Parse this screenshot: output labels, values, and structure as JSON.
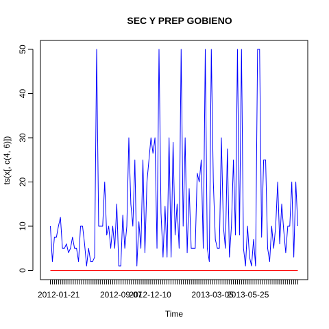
{
  "chart_data": {
    "type": "line",
    "title": "SEC Y PREP GOBIENO",
    "xlabel": "Time",
    "ylabel": "ts(x[, c(4, 6)])",
    "ylim": [
      0,
      50
    ],
    "y_ticks": [
      0,
      10,
      20,
      30,
      40,
      50
    ],
    "x_tick_labels": [
      "2012-01-21",
      "2012-09-07",
      "2012-12-10",
      "2013-03-05",
      "2013-05-25"
    ],
    "x_tick_label_positions": [
      4,
      34,
      48,
      78,
      95
    ],
    "n_time_ticks": 120,
    "grid": false,
    "legend": "none",
    "series": [
      {
        "color": "#0000ff",
        "values": [
          10,
          2,
          7.5,
          7.5,
          10,
          12,
          5,
          5,
          6,
          4,
          5,
          7.5,
          5,
          5,
          2,
          10,
          10,
          6,
          1,
          5,
          2,
          2,
          3,
          50,
          10,
          10,
          10,
          20,
          8,
          10,
          5,
          10,
          5,
          15,
          1,
          1,
          12.5,
          5,
          10,
          30,
          15,
          10,
          25,
          1,
          11,
          5,
          25,
          4,
          20,
          25,
          30,
          26.5,
          30,
          5,
          50,
          13,
          3,
          14.5,
          3,
          30,
          3,
          29,
          8,
          15,
          5,
          50,
          10,
          30,
          4,
          18.5,
          5,
          5,
          5,
          22,
          20,
          25,
          5,
          50,
          5,
          2,
          50,
          20,
          7,
          5,
          5,
          30,
          10,
          5,
          27.5,
          3,
          10,
          25,
          8,
          50,
          8,
          50,
          5,
          1,
          10,
          3,
          1,
          7,
          1,
          50,
          50,
          7.5,
          25,
          25,
          5,
          2,
          10,
          5,
          10,
          20,
          6,
          15,
          9,
          4,
          10,
          10,
          20,
          3,
          20,
          10
        ]
      },
      {
        "color": "#ff0000",
        "values": [
          0,
          0
        ]
      }
    ]
  }
}
